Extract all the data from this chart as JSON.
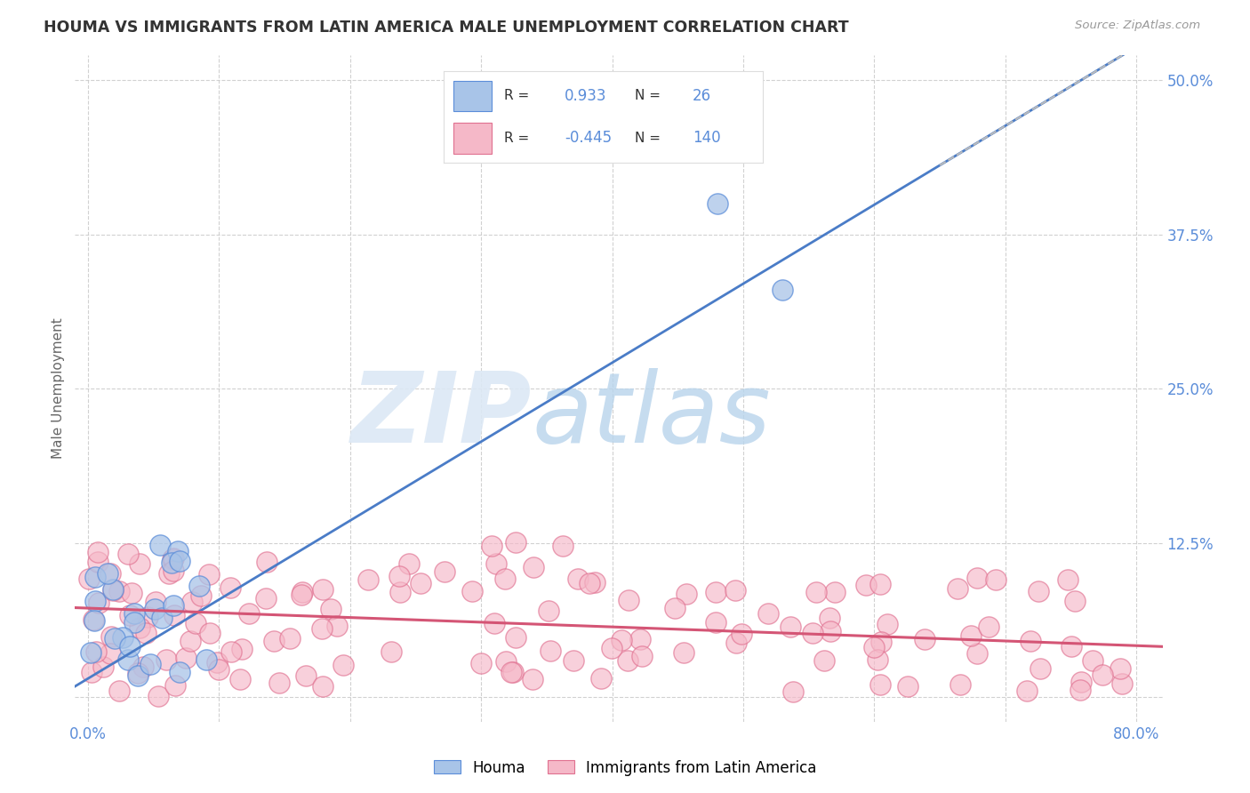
{
  "title": "HOUMA VS IMMIGRANTS FROM LATIN AMERICA MALE UNEMPLOYMENT CORRELATION CHART",
  "source": "Source: ZipAtlas.com",
  "ylabel": "Male Unemployment",
  "xlim": [
    -0.01,
    0.82
  ],
  "ylim": [
    -0.02,
    0.52
  ],
  "yticks": [
    0.0,
    0.125,
    0.25,
    0.375,
    0.5
  ],
  "ytick_labels": [
    "",
    "12.5%",
    "25.0%",
    "37.5%",
    "50.0%"
  ],
  "xticks": [
    0.0,
    0.1,
    0.2,
    0.3,
    0.4,
    0.5,
    0.6,
    0.7,
    0.8
  ],
  "xtick_labels": [
    "0.0%",
    "",
    "",
    "",
    "",
    "",
    "",
    "",
    "80.0%"
  ],
  "houma_color": "#a8c4e8",
  "houma_edge_color": "#5b8dd9",
  "latin_color": "#f5b8c8",
  "latin_edge_color": "#e07090",
  "houma_trend_color": "#4a7cc7",
  "latin_trend_color": "#d45575",
  "houma_trend_dashed_color": "#bbbbbb",
  "legend_R1": "0.933",
  "legend_N1": "26",
  "legend_R2": "-0.445",
  "legend_N2": "140",
  "watermark_zip": "ZIP",
  "watermark_atlas": "atlas",
  "background_color": "#ffffff",
  "grid_color": "#cccccc",
  "title_color": "#333333",
  "tick_label_color": "#5b8dd9",
  "legend_text_color": "#333333",
  "source_color": "#999999"
}
